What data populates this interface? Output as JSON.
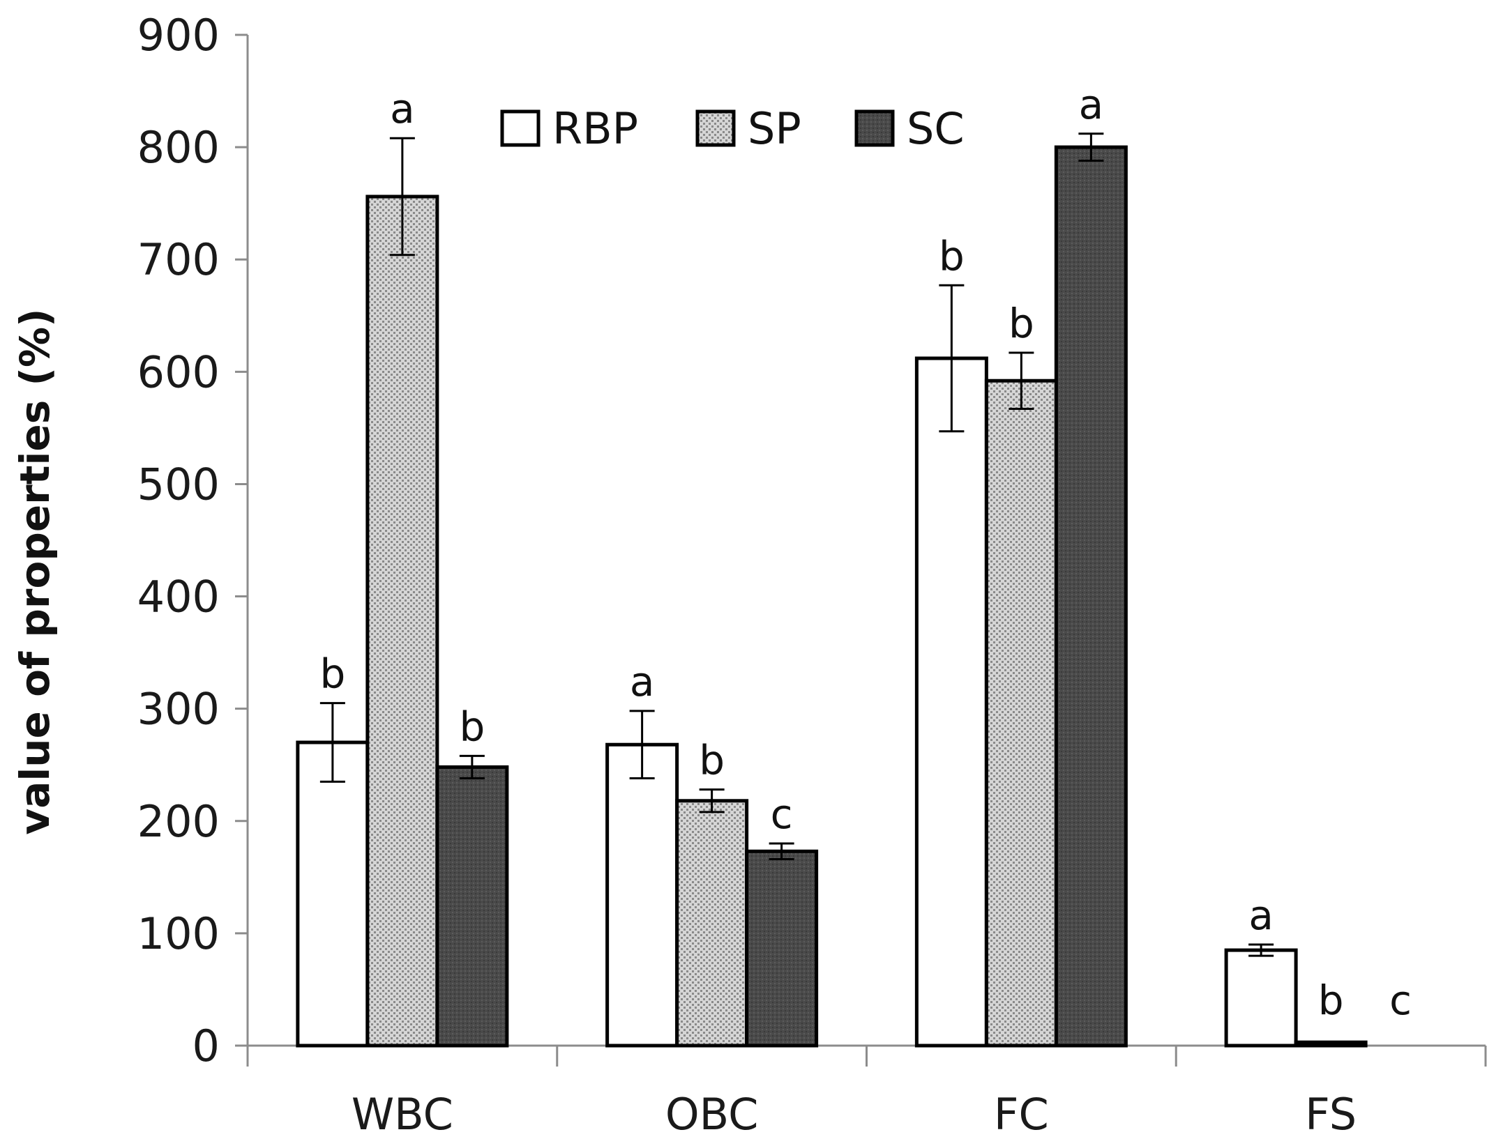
{
  "chart_data": {
    "type": "bar",
    "title": "",
    "xlabel": "",
    "ylabel": "value of properties (%)",
    "ylim": [
      0,
      900
    ],
    "yticks": [
      0,
      100,
      200,
      300,
      400,
      500,
      600,
      700,
      800,
      900
    ],
    "ytick_labels": [
      "0",
      "100",
      "200",
      "300",
      "400",
      "500",
      "600",
      "700",
      "800",
      "900"
    ],
    "grid": false,
    "legend_position": "top-center",
    "categories": [
      "WBC",
      "OBC",
      "FC",
      "FS"
    ],
    "series": [
      {
        "name": "RBP",
        "pattern": "white",
        "fill": "#ffffff",
        "values": [
          270,
          268,
          612,
          85
        ],
        "errors": [
          35,
          30,
          65,
          5
        ],
        "significance": [
          "b",
          "a",
          "b",
          "a"
        ]
      },
      {
        "name": "SP",
        "pattern": "dotted",
        "fill": "#d0d0d0",
        "values": [
          756,
          218,
          592,
          3
        ],
        "errors": [
          52,
          10,
          25,
          0
        ],
        "significance": [
          "a",
          "b",
          "b",
          "b"
        ]
      },
      {
        "name": "SC",
        "pattern": "dark",
        "fill": "#4a4a4a",
        "values": [
          248,
          173,
          800,
          0
        ],
        "errors": [
          10,
          7,
          12,
          0
        ],
        "significance": [
          "b",
          "c",
          "a",
          "c"
        ]
      }
    ]
  }
}
